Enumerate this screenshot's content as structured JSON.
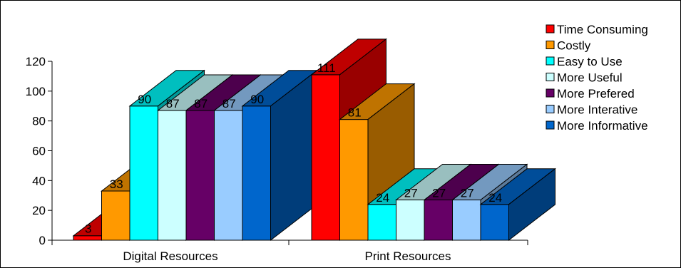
{
  "chart_data": {
    "type": "bar",
    "title": "",
    "xlabel": "",
    "ylabel": "",
    "ylim": [
      0,
      120
    ],
    "yticks": [
      0,
      20,
      40,
      60,
      80,
      100,
      120
    ],
    "categories": [
      "Digital Resources",
      "Print Resources"
    ],
    "grid": false,
    "legend_position": "top-right",
    "series": [
      {
        "name": "Time Consuming",
        "values": [
          3,
          111
        ],
        "color": "#FF0000"
      },
      {
        "name": "Costly",
        "values": [
          33,
          81
        ],
        "color": "#FF9900"
      },
      {
        "name": "Easy to Use",
        "values": [
          90,
          24
        ],
        "color": "#00FFFF"
      },
      {
        "name": "More Useful",
        "values": [
          87,
          27
        ],
        "color": "#CCFFFF"
      },
      {
        "name": "More Prefered",
        "values": [
          87,
          27
        ],
        "color": "#660066"
      },
      {
        "name": "More Interative",
        "values": [
          87,
          27
        ],
        "color": "#99CCFF"
      },
      {
        "name": "More Informative",
        "values": [
          90,
          24
        ],
        "color": "#0066CC"
      }
    ]
  }
}
